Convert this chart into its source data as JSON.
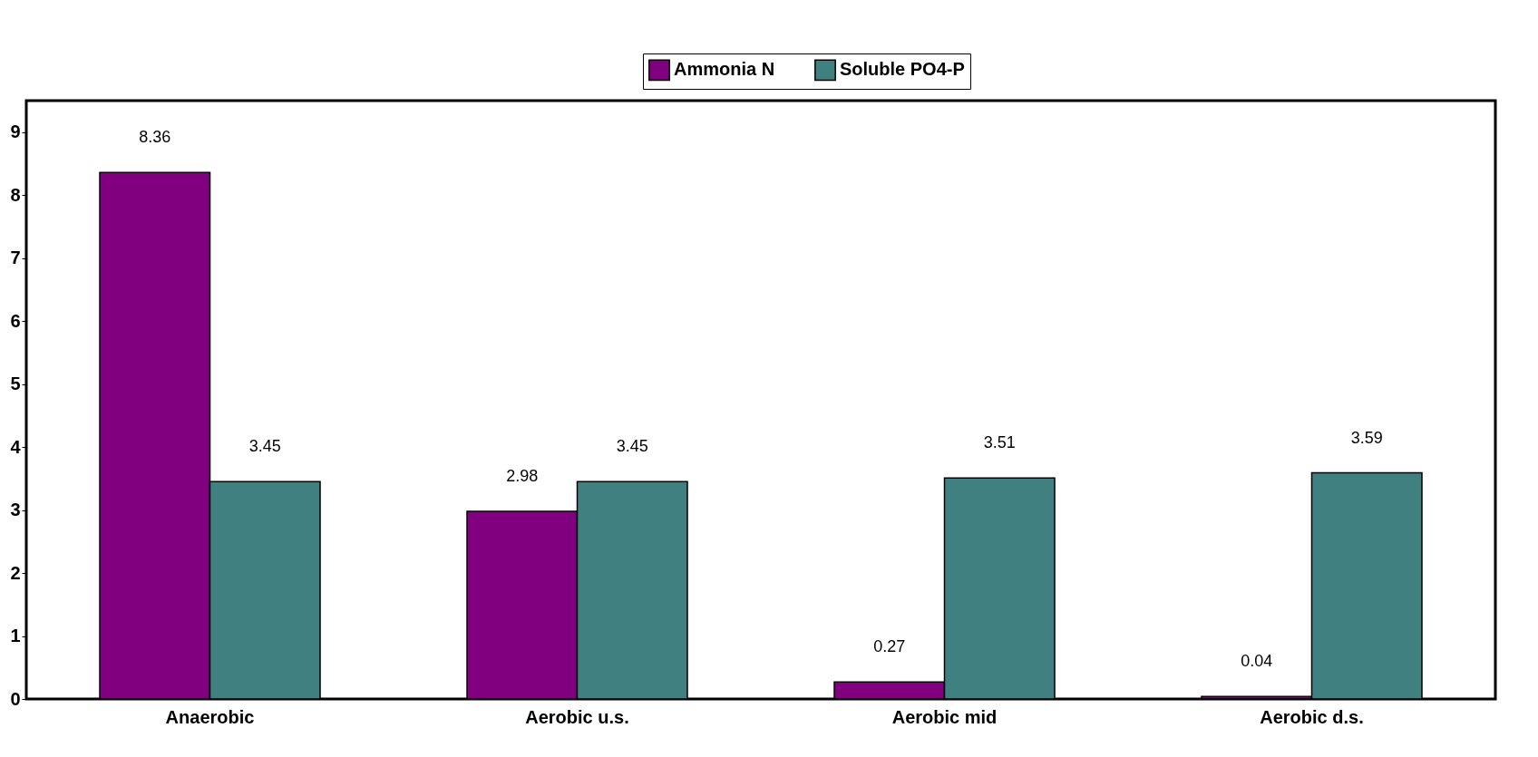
{
  "chart_data": {
    "type": "bar",
    "categories": [
      "Anaerobic",
      "Aerobic u.s.",
      "Aerobic mid",
      "Aerobic d.s."
    ],
    "series": [
      {
        "name": "Ammonia N",
        "color": "#800080",
        "values": [
          8.36,
          2.98,
          0.27,
          0.04
        ]
      },
      {
        "name": "Soluble PO4-P",
        "color": "#408080",
        "values": [
          3.45,
          3.45,
          3.51,
          3.59
        ]
      }
    ],
    "ylim": [
      0,
      9.5
    ],
    "yticks": [
      0,
      1,
      2,
      3,
      4,
      5,
      6,
      7,
      8,
      9
    ],
    "grid": false,
    "legend": "top",
    "data_labels": true
  }
}
